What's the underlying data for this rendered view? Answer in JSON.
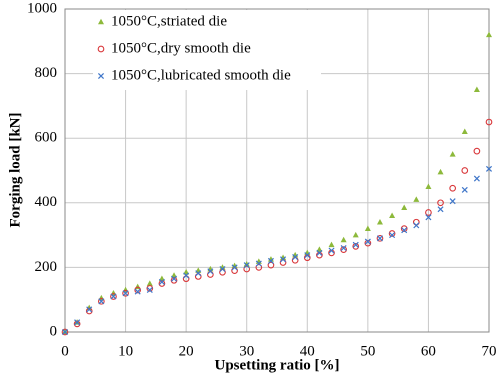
{
  "chart_data": {
    "type": "scatter",
    "x_label": "Upsetting ratio [%]",
    "y_label": "Forging load [kN]",
    "xlim": [
      0,
      70
    ],
    "xticks": [
      0,
      10,
      20,
      30,
      40,
      50,
      60,
      70
    ],
    "ylim": [
      0,
      1000
    ],
    "yticks": [
      0,
      200,
      400,
      600,
      800,
      1000
    ],
    "grid": true,
    "legend": "upper left",
    "series": [
      {
        "name": "1050°C,striated die",
        "color": "#8db93b",
        "marker": "triangle",
        "x": [
          0,
          2,
          4,
          6,
          8,
          10,
          12,
          14,
          16,
          18,
          20,
          22,
          24,
          26,
          28,
          30,
          32,
          34,
          36,
          38,
          40,
          42,
          44,
          46,
          48,
          50,
          52,
          54,
          56,
          58,
          60,
          62,
          64,
          66,
          68,
          70
        ],
        "values": [
          0,
          30,
          75,
          105,
          120,
          130,
          140,
          150,
          165,
          175,
          185,
          190,
          195,
          200,
          205,
          210,
          218,
          225,
          230,
          238,
          245,
          255,
          270,
          285,
          300,
          320,
          340,
          360,
          385,
          410,
          450,
          495,
          550,
          620,
          750,
          920
        ]
      },
      {
        "name": "1050°C,dry smooth die",
        "color": "#d9373a",
        "marker": "circle",
        "x": [
          0,
          2,
          4,
          6,
          8,
          10,
          12,
          14,
          16,
          18,
          20,
          22,
          24,
          26,
          28,
          30,
          32,
          34,
          36,
          38,
          40,
          42,
          44,
          46,
          48,
          50,
          52,
          54,
          56,
          58,
          60,
          62,
          64,
          66,
          68,
          70
        ],
        "values": [
          0,
          25,
          65,
          95,
          110,
          120,
          130,
          135,
          150,
          160,
          165,
          172,
          178,
          185,
          190,
          195,
          200,
          207,
          215,
          222,
          230,
          238,
          245,
          255,
          265,
          275,
          290,
          305,
          320,
          340,
          370,
          400,
          445,
          500,
          560,
          650
        ]
      },
      {
        "name": "1050°C,lubricated smooth die",
        "color": "#3f76c9",
        "marker": "cross",
        "x": [
          0,
          2,
          4,
          6,
          8,
          10,
          12,
          14,
          16,
          18,
          20,
          22,
          24,
          26,
          28,
          30,
          32,
          34,
          36,
          38,
          40,
          42,
          44,
          46,
          48,
          50,
          52,
          54,
          56,
          58,
          60,
          62,
          64,
          66,
          68,
          70
        ],
        "values": [
          0,
          30,
          70,
          95,
          110,
          120,
          125,
          130,
          155,
          165,
          175,
          182,
          188,
          195,
          200,
          207,
          212,
          220,
          225,
          232,
          238,
          245,
          252,
          260,
          270,
          280,
          290,
          300,
          315,
          330,
          355,
          380,
          405,
          440,
          475,
          505
        ]
      }
    ]
  }
}
